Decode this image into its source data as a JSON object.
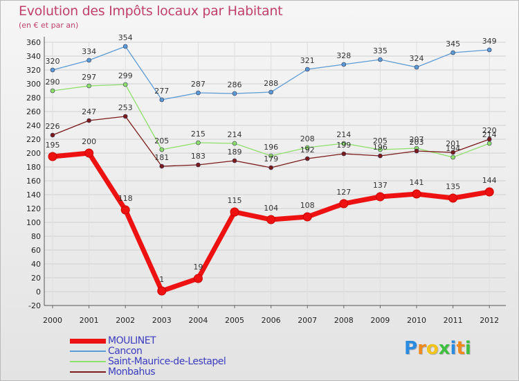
{
  "title": "Evolution des Impôts locaux par Habitant",
  "subtitle": "(en € et par an)",
  "brand": {
    "name": "Proxiti",
    "letters": [
      "P",
      "r",
      "o",
      "x",
      "i",
      "t",
      "i"
    ],
    "colors": [
      "#2a8be0",
      "#f08a1c",
      "#f2c318",
      "#3fbf3f",
      "#2a8be0",
      "#f08a1c",
      "#3fbf3f"
    ]
  },
  "chart_data": {
    "type": "line",
    "title": "Evolution des Impôts locaux par Habitant",
    "subtitle": "(en € et par an)",
    "xlabel": "",
    "ylabel": "",
    "x": [
      "2000",
      "2001",
      "2002",
      "2003",
      "2004",
      "2005",
      "2006",
      "2007",
      "2008",
      "2009",
      "2010",
      "2011",
      "2012"
    ],
    "ylim": [
      -20,
      360
    ],
    "yticks": [
      -20,
      0,
      20,
      40,
      60,
      80,
      100,
      120,
      140,
      160,
      180,
      200,
      220,
      240,
      260,
      280,
      300,
      320,
      340,
      360
    ],
    "grid": true,
    "legend_position": "bottom-left",
    "series": [
      {
        "name": "Cancon",
        "color": "#5b9bd5",
        "width": 1.3,
        "marker": 3,
        "values": [
          320,
          334,
          354,
          277,
          287,
          286,
          288,
          321,
          328,
          335,
          324,
          345,
          349
        ],
        "labels": [
          "320",
          "334",
          "354",
          "277",
          "287",
          "286",
          "288",
          "321",
          "328",
          "335",
          "324",
          "345",
          "349"
        ]
      },
      {
        "name": "Saint-Maurice-de-Lestapel",
        "color": "#8ee06a",
        "width": 1.3,
        "marker": 3,
        "values": [
          290,
          297,
          299,
          205,
          215,
          214,
          196,
          208,
          214,
          205,
          207,
          194,
          214
        ],
        "labels": [
          "290",
          "297",
          "299",
          "205",
          "215",
          "214",
          "196",
          "208",
          "214",
          "205",
          "207",
          "194",
          "214"
        ]
      },
      {
        "name": "Monbahus",
        "color": "#7a1a1a",
        "width": 1.3,
        "marker": 3,
        "values": [
          226,
          247,
          253,
          181,
          183,
          189,
          179,
          192,
          199,
          196,
          203,
          201,
          220
        ],
        "labels": [
          "226",
          "247",
          "253",
          "181",
          "183",
          "189",
          "179",
          "192",
          "199",
          "196",
          "203",
          "201",
          "220"
        ]
      },
      {
        "name": "MOULINET",
        "color": "#ee1111",
        "width": 7,
        "marker": 6,
        "values": [
          195,
          200,
          118,
          1,
          19,
          115,
          104,
          108,
          127,
          137,
          141,
          135,
          144
        ],
        "labels": [
          "195",
          "200",
          "118",
          "1",
          "19",
          "115",
          "104",
          "108",
          "127",
          "137",
          "141",
          "135",
          "144"
        ]
      }
    ],
    "legend": [
      {
        "name": "MOULINET",
        "color": "#ee1111",
        "width": 7
      },
      {
        "name": "Cancon",
        "color": "#5b9bd5",
        "width": 1.5
      },
      {
        "name": "Saint-Maurice-de-Lestapel",
        "color": "#8ee06a",
        "width": 1.5
      },
      {
        "name": "Monbahus",
        "color": "#7a1a1a",
        "width": 1.5
      }
    ]
  }
}
